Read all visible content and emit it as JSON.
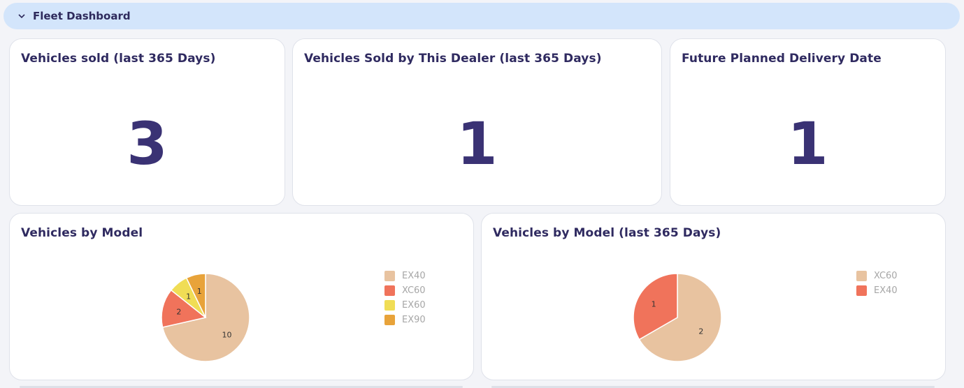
{
  "header": {
    "title": "Fleet Dashboard"
  },
  "kpis": [
    {
      "title": "Vehicles sold (last 365 Days)",
      "value": "3"
    },
    {
      "title": "Vehicles Sold by This Dealer (last 365 Days)",
      "value": "1"
    },
    {
      "title": "Future Planned Delivery Date",
      "value": "1"
    }
  ],
  "charts": [
    {
      "title": "Vehicles by Model"
    },
    {
      "title": "Vehicles by Model (last 365 Days)"
    }
  ],
  "chart_data": [
    {
      "type": "pie",
      "title": "Vehicles by Model",
      "categories": [
        "EX40",
        "XC60",
        "EX60",
        "EX90"
      ],
      "values": [
        10,
        2,
        1,
        1
      ],
      "colors": [
        "#e8c3a0",
        "#f0735b",
        "#f0dd55",
        "#e8a33a"
      ]
    },
    {
      "type": "pie",
      "title": "Vehicles by Model (last 365 Days)",
      "categories": [
        "XC60",
        "EX40"
      ],
      "values": [
        2,
        1
      ],
      "colors": [
        "#e8c3a0",
        "#f0735b"
      ]
    }
  ]
}
